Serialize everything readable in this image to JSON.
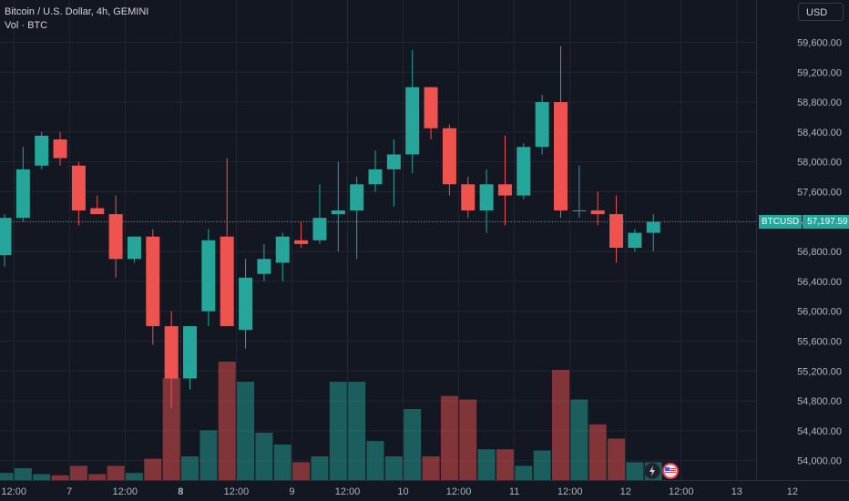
{
  "header": {
    "symbol_line": "Bitcoin / U.S. Dollar, 4h, GEMINI",
    "volume_line": "Vol · BTC"
  },
  "currency_button": "USD",
  "last_price": {
    "symbol": "BTCUSD",
    "value": "57,197.59",
    "num": 57197.59
  },
  "colors": {
    "up": "#26a69a",
    "down": "#ef5350",
    "background": "#131722",
    "grid": "#232632"
  },
  "chart_data": {
    "type": "candlestick",
    "title": "Bitcoin / U.S. Dollar, 4h, GEMINI",
    "ylim": [
      53800,
      59850
    ],
    "y_ticks": [
      54000,
      54400,
      54800,
      55200,
      55600,
      56000,
      56400,
      56800,
      57200,
      57600,
      58000,
      58400,
      58800,
      59200,
      59600
    ],
    "y_tick_labels": [
      "54,000.00",
      "54,400.00",
      "54,800.00",
      "55,200.00",
      "55,600.00",
      "56,000.00",
      "56,400.00",
      "56,800.00",
      "57,200.00",
      "57,600.00",
      "58,000.00",
      "58,400.00",
      "58,800.00",
      "59,200.00",
      "59,600.00"
    ],
    "x_tick_labels": [
      {
        "label": "12:00",
        "index": 0.5
      },
      {
        "label": "7",
        "index": 3.5
      },
      {
        "label": "12:00",
        "index": 6.5
      },
      {
        "label": "8",
        "index": 9.5,
        "bold": true
      },
      {
        "label": "12:00",
        "index": 12.5
      },
      {
        "label": "9",
        "index": 15.5
      },
      {
        "label": "12:00",
        "index": 18.5
      },
      {
        "label": "10",
        "index": 21.5
      },
      {
        "label": "12:00",
        "index": 24.5
      },
      {
        "label": "11",
        "index": 27.5
      },
      {
        "label": "12:00",
        "index": 30.5
      },
      {
        "label": "12",
        "index": 33.5
      },
      {
        "label": "12:00",
        "index": 36.5
      },
      {
        "label": "13",
        "index": 39.5
      },
      {
        "label": "12",
        "index": 42.5
      }
    ],
    "candles": [
      {
        "o": 56750,
        "h": 57300,
        "l": 56600,
        "c": 57250
      },
      {
        "o": 57250,
        "h": 58200,
        "l": 57200,
        "c": 57900
      },
      {
        "o": 57950,
        "h": 58400,
        "l": 57900,
        "c": 58350
      },
      {
        "o": 58300,
        "h": 58400,
        "l": 57950,
        "c": 58050
      },
      {
        "o": 57950,
        "h": 58000,
        "l": 57150,
        "c": 57350
      },
      {
        "o": 57380,
        "h": 57550,
        "l": 57300,
        "c": 57300
      },
      {
        "o": 57300,
        "h": 57550,
        "l": 56450,
        "c": 56700
      },
      {
        "o": 56700,
        "h": 57000,
        "l": 56650,
        "c": 57000
      },
      {
        "o": 57000,
        "h": 57100,
        "l": 55550,
        "c": 55800
      },
      {
        "o": 55800,
        "h": 56000,
        "l": 54700,
        "c": 55100
      },
      {
        "o": 55100,
        "h": 55800,
        "l": 54950,
        "c": 55800
      },
      {
        "o": 56000,
        "h": 57100,
        "l": 55800,
        "c": 56950
      },
      {
        "o": 57000,
        "h": 58050,
        "l": 55800,
        "c": 55800
      },
      {
        "o": 55750,
        "h": 56700,
        "l": 55500,
        "c": 56450
      },
      {
        "o": 56500,
        "h": 56900,
        "l": 56400,
        "c": 56700
      },
      {
        "o": 56650,
        "h": 57050,
        "l": 56400,
        "c": 57000
      },
      {
        "o": 56950,
        "h": 57200,
        "l": 56850,
        "c": 56900
      },
      {
        "o": 56950,
        "h": 57700,
        "l": 56900,
        "c": 57250
      },
      {
        "o": 57300,
        "h": 58000,
        "l": 56800,
        "c": 57350
      },
      {
        "o": 57350,
        "h": 57800,
        "l": 56700,
        "c": 57700
      },
      {
        "o": 57700,
        "h": 58150,
        "l": 57600,
        "c": 57900
      },
      {
        "o": 57900,
        "h": 58300,
        "l": 57400,
        "c": 58100
      },
      {
        "o": 58100,
        "h": 59500,
        "l": 57850,
        "c": 59000
      },
      {
        "o": 59000,
        "h": 59000,
        "l": 58300,
        "c": 58450
      },
      {
        "o": 58450,
        "h": 58500,
        "l": 57550,
        "c": 57700
      },
      {
        "o": 57700,
        "h": 57800,
        "l": 57250,
        "c": 57350
      },
      {
        "o": 57350,
        "h": 57900,
        "l": 57050,
        "c": 57700
      },
      {
        "o": 57700,
        "h": 58350,
        "l": 57150,
        "c": 57550
      },
      {
        "o": 57550,
        "h": 58250,
        "l": 57500,
        "c": 58200
      },
      {
        "o": 58200,
        "h": 58900,
        "l": 58100,
        "c": 58800
      },
      {
        "o": 58800,
        "h": 59550,
        "l": 57250,
        "c": 57350
      },
      {
        "o": 57350,
        "h": 57950,
        "l": 57250,
        "c": 57350
      },
      {
        "o": 57350,
        "h": 57600,
        "l": 57150,
        "c": 57300
      },
      {
        "o": 57300,
        "h": 57550,
        "l": 56650,
        "c": 56850
      },
      {
        "o": 56850,
        "h": 57100,
        "l": 56800,
        "c": 57050
      },
      {
        "o": 57050,
        "h": 57300,
        "l": 56800,
        "c": 57197.59
      }
    ],
    "volume_levels": [
      0.06,
      0.1,
      0.05,
      0.04,
      0.12,
      0.05,
      0.12,
      0.06,
      0.18,
      0.86,
      0.2,
      0.42,
      1.0,
      0.83,
      0.4,
      0.3,
      0.15,
      0.2,
      0.83,
      0.83,
      0.33,
      0.2,
      0.6,
      0.2,
      0.71,
      0.68,
      0.26,
      0.26,
      0.12,
      0.25,
      0.93,
      0.68,
      0.47,
      0.35,
      0.15,
      0.15
    ]
  },
  "events": {
    "flash_icon": "lightning-icon",
    "flag_icon": "us-flag-icon"
  }
}
